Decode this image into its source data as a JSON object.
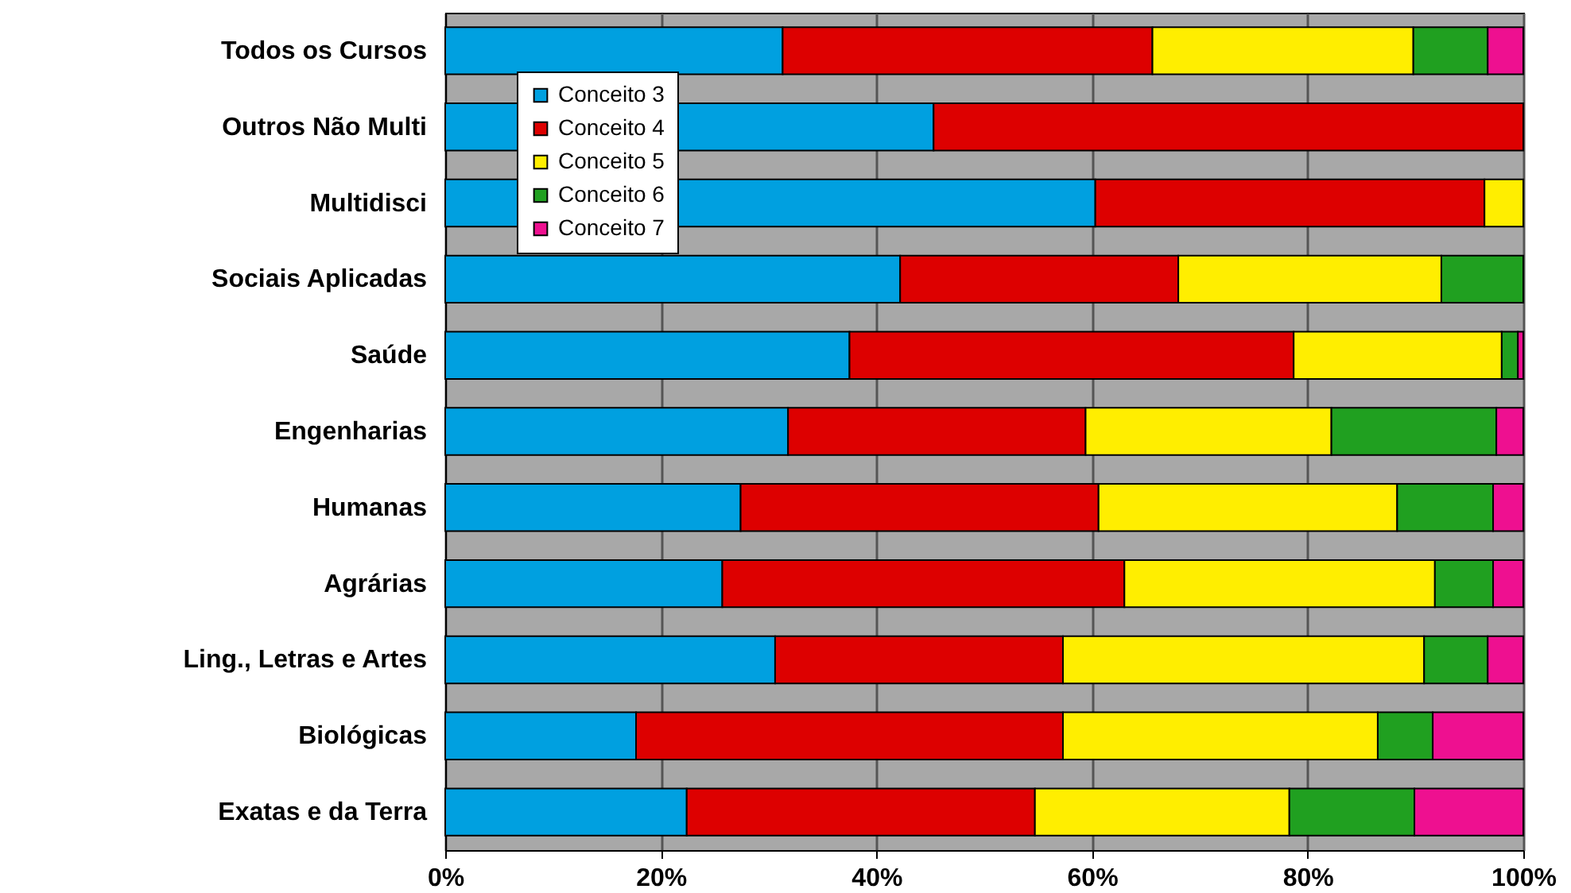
{
  "chart_data": {
    "type": "bar",
    "orientation": "horizontal",
    "stacked": true,
    "categories": [
      "Todos os Cursos",
      "Outros Não Multi",
      "Multidisci",
      "Sociais Aplicadas",
      "Saúde",
      "Engenharias",
      "Humanas",
      "Agrárias",
      "Ling., Letras e Artes",
      "Biológicas",
      "Exatas e da Terra"
    ],
    "series": [
      {
        "name": "Conceito 3",
        "color": "#00a0e0",
        "values": [
          31.3,
          45.3,
          60.3,
          42.2,
          37.5,
          31.8,
          27.4,
          25.7,
          30.6,
          17.7,
          22.4
        ]
      },
      {
        "name": "Conceito 4",
        "color": "#dd0000",
        "values": [
          34.3,
          54.7,
          36.1,
          25.8,
          41.2,
          27.6,
          33.2,
          37.3,
          26.7,
          39.6,
          32.3
        ]
      },
      {
        "name": "Conceito 5",
        "color": "#ffee00",
        "values": [
          24.2,
          0,
          3.6,
          24.4,
          19.3,
          22.8,
          27.7,
          28.8,
          33.5,
          29.2,
          23.6
        ]
      },
      {
        "name": "Conceito 6",
        "color": "#20a020",
        "values": [
          6.9,
          0,
          0,
          7.6,
          1.5,
          15.3,
          8.9,
          5.4,
          5.9,
          5.1,
          11.6
        ]
      },
      {
        "name": "Conceito 7",
        "color": "#ee1090",
        "values": [
          3.3,
          0,
          0,
          0,
          0.5,
          2.5,
          2.8,
          2.8,
          3.3,
          8.4,
          10.1
        ]
      }
    ],
    "xlim": [
      0,
      100
    ],
    "xticks": [
      {
        "value": 0,
        "label": "0%"
      },
      {
        "value": 20,
        "label": "20%"
      },
      {
        "value": 40,
        "label": "40%"
      },
      {
        "value": 60,
        "label": "60%"
      },
      {
        "value": 80,
        "label": "80%"
      },
      {
        "value": 100,
        "label": "100%"
      }
    ],
    "grid": "x",
    "legend": "top left"
  }
}
